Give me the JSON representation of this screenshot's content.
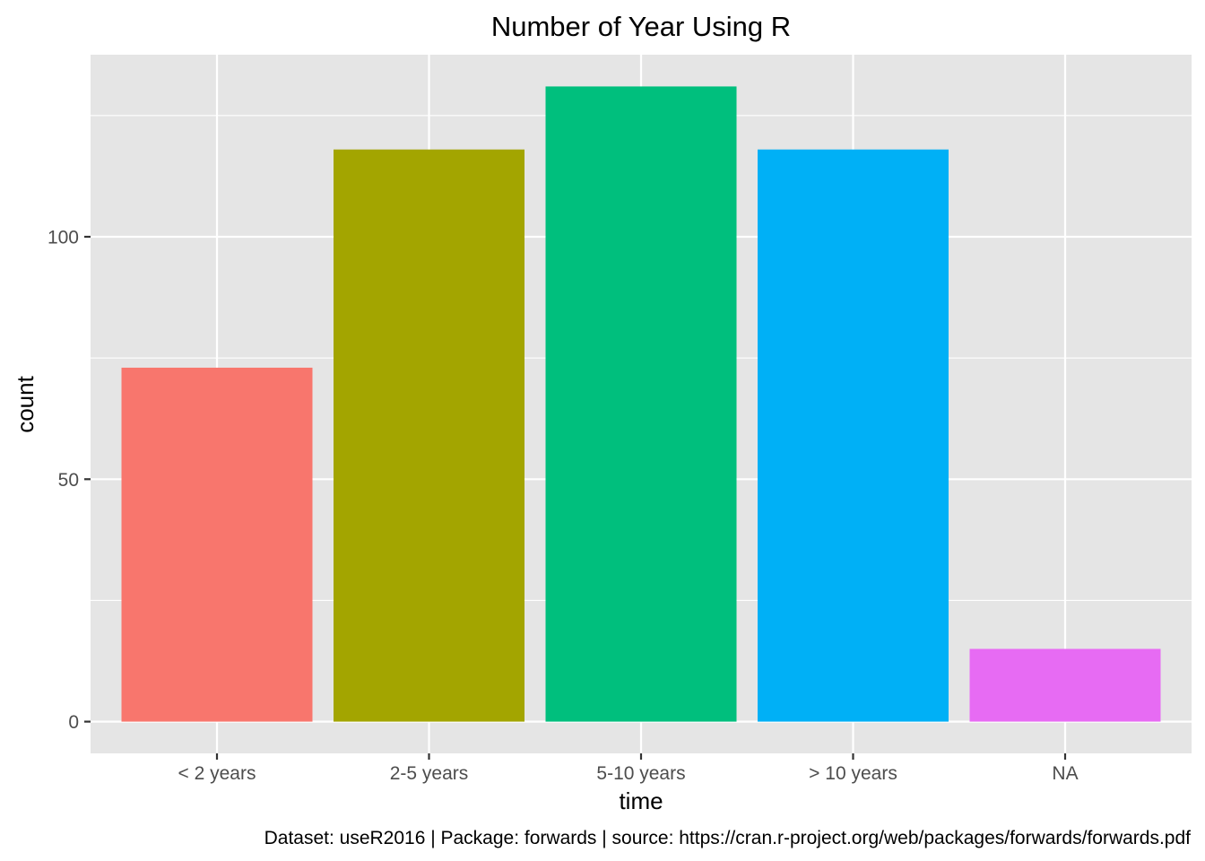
{
  "chart_data": {
    "type": "bar",
    "title": "Number of Year Using R",
    "xlabel": "time",
    "ylabel": "count",
    "categories": [
      "< 2 years",
      "2-5 years",
      "5-10 years",
      "> 10 years",
      "NA"
    ],
    "values": [
      73,
      118,
      131,
      118,
      15
    ],
    "colors": [
      "#F8766D",
      "#A3A500",
      "#00BF7D",
      "#00B0F6",
      "#E76BF3"
    ],
    "ylim": [
      -6.55,
      137.55
    ],
    "yticks": [
      0,
      50,
      100
    ],
    "yticks_minor": [
      25,
      75,
      125
    ],
    "ytick_labels": [
      "0",
      "50",
      "100"
    ],
    "grid": true,
    "legend": "none",
    "caption": "Dataset: useR2016 | Package: forwards | source: https://cran.r-project.org/web/packages/forwards/forwards.pdf"
  }
}
